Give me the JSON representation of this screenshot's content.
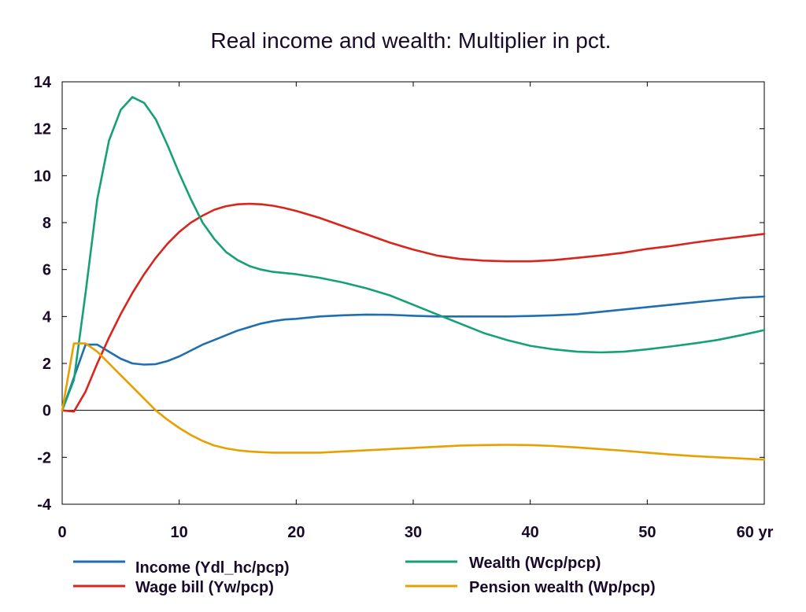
{
  "chart_data": {
    "type": "line",
    "title": "Real income and wealth: Multiplier in pct.",
    "xlabel": "",
    "ylabel": "",
    "x_unit_label": "yr",
    "xlim": [
      0,
      60
    ],
    "ylim": [
      -4,
      14
    ],
    "x_ticks": [
      0,
      10,
      20,
      30,
      40,
      50,
      60
    ],
    "x_tick_labels": [
      "0",
      "10",
      "20",
      "30",
      "40",
      "50",
      "60 yr"
    ],
    "y_ticks": [
      -4,
      -2,
      0,
      2,
      4,
      6,
      8,
      10,
      12,
      14
    ],
    "grid": false,
    "zero_line": true,
    "legend_position": "bottom",
    "x": [
      0,
      1,
      2,
      3,
      4,
      5,
      6,
      7,
      8,
      9,
      10,
      11,
      12,
      13,
      14,
      15,
      16,
      17,
      18,
      19,
      20,
      22,
      24,
      26,
      28,
      30,
      32,
      34,
      36,
      38,
      40,
      42,
      44,
      46,
      48,
      50,
      52,
      54,
      56,
      58,
      60
    ],
    "series": [
      {
        "name": "Income (Ydl_hc/pcp)",
        "color": "#1f6fb0",
        "values": [
          0,
          1.4,
          2.8,
          2.8,
          2.5,
          2.2,
          2.0,
          1.95,
          1.97,
          2.1,
          2.3,
          2.55,
          2.8,
          3.0,
          3.2,
          3.4,
          3.55,
          3.7,
          3.8,
          3.87,
          3.9,
          4.0,
          4.05,
          4.08,
          4.07,
          4.03,
          4.0,
          4.0,
          4.0,
          4.0,
          4.02,
          4.05,
          4.1,
          4.2,
          4.3,
          4.4,
          4.5,
          4.6,
          4.7,
          4.8,
          4.85
        ]
      },
      {
        "name": "Wage bill (Yw/pcp)",
        "color": "#d7261e",
        "values": [
          0,
          -0.05,
          0.8,
          2.0,
          3.1,
          4.1,
          5.0,
          5.8,
          6.5,
          7.1,
          7.6,
          8.0,
          8.3,
          8.55,
          8.7,
          8.78,
          8.8,
          8.78,
          8.72,
          8.62,
          8.5,
          8.2,
          7.85,
          7.5,
          7.15,
          6.85,
          6.6,
          6.45,
          6.38,
          6.35,
          6.35,
          6.4,
          6.5,
          6.6,
          6.72,
          6.88,
          7.0,
          7.15,
          7.28,
          7.4,
          7.52
        ]
      },
      {
        "name": "Wealth (Wcp/pcp)",
        "color": "#16a078",
        "values": [
          0,
          1.3,
          5.0,
          9.0,
          11.5,
          12.8,
          13.35,
          13.1,
          12.4,
          11.3,
          10.1,
          9.0,
          8.0,
          7.3,
          6.75,
          6.4,
          6.15,
          6.0,
          5.9,
          5.85,
          5.8,
          5.65,
          5.45,
          5.2,
          4.9,
          4.5,
          4.1,
          3.7,
          3.3,
          3.0,
          2.75,
          2.6,
          2.5,
          2.47,
          2.5,
          2.6,
          2.72,
          2.85,
          3.0,
          3.2,
          3.42
        ]
      },
      {
        "name": "Pension wealth (Wp/pcp)",
        "color": "#e8a000",
        "values": [
          0,
          2.85,
          2.85,
          2.5,
          2.0,
          1.5,
          1.0,
          0.5,
          0.0,
          -0.4,
          -0.75,
          -1.05,
          -1.3,
          -1.5,
          -1.62,
          -1.7,
          -1.75,
          -1.78,
          -1.8,
          -1.8,
          -1.8,
          -1.8,
          -1.75,
          -1.7,
          -1.65,
          -1.6,
          -1.55,
          -1.5,
          -1.48,
          -1.47,
          -1.48,
          -1.52,
          -1.58,
          -1.65,
          -1.72,
          -1.8,
          -1.88,
          -1.95,
          -2.0,
          -2.05,
          -2.1
        ]
      }
    ]
  }
}
